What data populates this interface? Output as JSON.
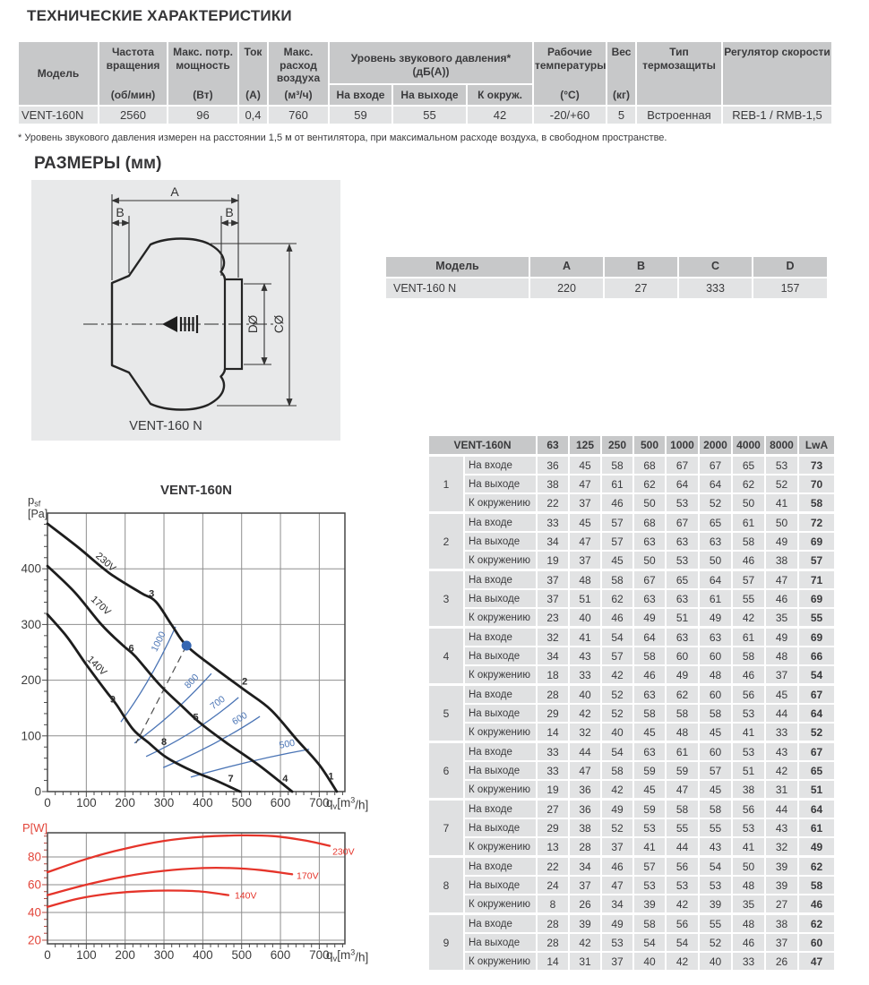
{
  "heading": "ТЕХНИЧЕСКИЕ ХАРАКТЕРИСТИКИ",
  "specs": {
    "model_header": "Модель",
    "columns": [
      {
        "title": "Частота вращения",
        "unit": "(об/мин)"
      },
      {
        "title": "Макс. потр. мощность",
        "unit": "(Вт)"
      },
      {
        "title": "Ток",
        "unit": "(А)"
      },
      {
        "title": "Макс. расход воздуха",
        "unit": "(м³/ч)"
      }
    ],
    "sound_group": {
      "title": "Уровень звукового давления*",
      "subtitle": "(дБ(А))",
      "subcolumns": [
        "На входе",
        "На выходе",
        "К окруж."
      ]
    },
    "columns_right": [
      {
        "title": "Рабочие температуры",
        "unit": "(°С)"
      },
      {
        "title": "Вес",
        "unit": "(кг)"
      },
      {
        "title": "Тип термозащиты",
        "unit": ""
      },
      {
        "title": "Регулятор скорости",
        "unit": ""
      }
    ],
    "row": {
      "model": "VENT-160N",
      "rpm": "2560",
      "power": "96",
      "current": "0,4",
      "airflow": "760",
      "sound_inlet": "59",
      "sound_outlet": "55",
      "sound_ambient": "42",
      "temp": "-20/+60",
      "weight": "5",
      "thermal": "Встроенная",
      "regulator": "REB-1 / RMB-1,5"
    },
    "footnote": "* Уровень звукового давления измерен на расстоянии 1,5 м от вентилятора, при максимальном расходе воздуха, в свободном пространстве."
  },
  "dimensions": {
    "heading": "РАЗМЕРЫ (мм)",
    "diagram": {
      "label_a": "A",
      "label_b_left": "B",
      "label_b_right": "B",
      "label_d": "DØ",
      "label_c": "CØ",
      "caption": "VENT-160 N"
    },
    "table": {
      "headers": [
        "Модель",
        "A",
        "B",
        "C",
        "D"
      ],
      "row": [
        "VENT-160 N",
        "220",
        "27",
        "333",
        "157"
      ]
    }
  },
  "acoustic": {
    "model": "VENT-160N",
    "freq_headers": [
      "63",
      "125",
      "250",
      "500",
      "1000",
      "2000",
      "4000",
      "8000",
      "LwA"
    ],
    "row_labels": [
      "На входе",
      "На выходе",
      "К окружению"
    ],
    "groups": [
      {
        "n": "1",
        "rows": [
          [
            36,
            45,
            58,
            68,
            67,
            67,
            65,
            53,
            73
          ],
          [
            38,
            47,
            61,
            62,
            64,
            64,
            62,
            52,
            70
          ],
          [
            22,
            37,
            46,
            50,
            53,
            52,
            50,
            41,
            58
          ]
        ]
      },
      {
        "n": "2",
        "rows": [
          [
            33,
            45,
            57,
            68,
            67,
            65,
            61,
            50,
            72
          ],
          [
            34,
            47,
            57,
            63,
            63,
            63,
            58,
            49,
            69
          ],
          [
            19,
            37,
            45,
            50,
            53,
            50,
            46,
            38,
            57
          ]
        ]
      },
      {
        "n": "3",
        "rows": [
          [
            37,
            48,
            58,
            67,
            65,
            64,
            57,
            47,
            71
          ],
          [
            37,
            51,
            62,
            63,
            63,
            61,
            55,
            46,
            69
          ],
          [
            23,
            40,
            46,
            49,
            51,
            49,
            42,
            35,
            55
          ]
        ]
      },
      {
        "n": "4",
        "rows": [
          [
            32,
            41,
            54,
            64,
            63,
            63,
            61,
            49,
            69
          ],
          [
            34,
            43,
            57,
            58,
            60,
            60,
            58,
            48,
            66
          ],
          [
            18,
            33,
            42,
            46,
            49,
            48,
            46,
            37,
            54
          ]
        ]
      },
      {
        "n": "5",
        "rows": [
          [
            28,
            40,
            52,
            63,
            62,
            60,
            56,
            45,
            67
          ],
          [
            29,
            42,
            52,
            58,
            58,
            58,
            53,
            44,
            64
          ],
          [
            14,
            32,
            40,
            45,
            48,
            45,
            41,
            33,
            52
          ]
        ]
      },
      {
        "n": "6",
        "rows": [
          [
            33,
            44,
            54,
            63,
            61,
            60,
            53,
            43,
            67
          ],
          [
            33,
            47,
            58,
            59,
            59,
            57,
            51,
            42,
            65
          ],
          [
            19,
            36,
            42,
            45,
            47,
            45,
            38,
            31,
            51
          ]
        ]
      },
      {
        "n": "7",
        "rows": [
          [
            27,
            36,
            49,
            59,
            58,
            58,
            56,
            44,
            64
          ],
          [
            29,
            38,
            52,
            53,
            55,
            55,
            53,
            43,
            61
          ],
          [
            13,
            28,
            37,
            41,
            44,
            43,
            41,
            32,
            49
          ]
        ]
      },
      {
        "n": "8",
        "rows": [
          [
            22,
            34,
            46,
            57,
            56,
            54,
            50,
            39,
            62
          ],
          [
            24,
            37,
            47,
            53,
            53,
            53,
            48,
            39,
            58
          ],
          [
            8,
            26,
            34,
            39,
            42,
            39,
            35,
            27,
            46
          ]
        ]
      },
      {
        "n": "9",
        "rows": [
          [
            28,
            39,
            49,
            58,
            56,
            55,
            48,
            38,
            62
          ],
          [
            28,
            42,
            53,
            54,
            54,
            52,
            46,
            37,
            60
          ],
          [
            14,
            31,
            37,
            40,
            42,
            40,
            33,
            26,
            47
          ]
        ]
      }
    ]
  },
  "chart_data": [
    {
      "type": "line",
      "title": "VENT-160N",
      "xlabel": "qv[m³/h]",
      "ylabel": "psf [Pa]",
      "x_label_parts": {
        "base": "q",
        "sub": "v",
        "unit_pre": "[m",
        "sup": "3",
        "unit_post": "/h]"
      },
      "y_label_parts": {
        "base": "p",
        "sub": "sf",
        "unit": "[Pa]"
      },
      "xlim": [
        0,
        766
      ],
      "ylim": [
        0,
        500
      ],
      "xticks": [
        0,
        100,
        200,
        300,
        400,
        500,
        600,
        700
      ],
      "yticks": [
        0,
        100,
        200,
        300,
        400
      ],
      "grid": true,
      "series": [
        {
          "name": "230V",
          "color": "#1d1d1d",
          "label_at": [
            145,
            408
          ],
          "label_rot": 42,
          "points": [
            [
              0,
              481
            ],
            [
              80,
              438
            ],
            [
              160,
              392
            ],
            [
              240,
              357
            ],
            [
              279,
              341
            ],
            [
              320,
              299
            ],
            [
              358,
              262
            ],
            [
              430,
              222
            ],
            [
              508,
              182
            ],
            [
              575,
              147
            ],
            [
              640,
              95
            ],
            [
              700,
              48
            ],
            [
              745,
              0
            ]
          ]
        },
        {
          "name": "170V",
          "color": "#1d1d1d",
          "label_at": [
            132,
            330
          ],
          "label_rot": 43,
          "points": [
            [
              0,
              405
            ],
            [
              70,
              358
            ],
            [
              140,
              299
            ],
            [
              195,
              262
            ],
            [
              226,
              243
            ],
            [
              290,
              191
            ],
            [
              350,
              151
            ],
            [
              395,
              122
            ],
            [
              460,
              88
            ],
            [
              545,
              47
            ],
            [
              630,
              0
            ]
          ]
        },
        {
          "name": "140V",
          "color": "#1d1d1d",
          "label_at": [
            122,
            222
          ],
          "label_rot": 45,
          "points": [
            [
              0,
              318
            ],
            [
              50,
              278
            ],
            [
              100,
              228
            ],
            [
              150,
              181
            ],
            [
              178,
              156
            ],
            [
              220,
              112
            ],
            [
              260,
              88
            ],
            [
              305,
              62
            ],
            [
              370,
              38
            ],
            [
              430,
              21
            ],
            [
              496,
              0
            ]
          ]
        }
      ],
      "system_curves": [
        {
          "label": "1000",
          "start": [
            189,
            125
          ],
          "ctrl": [
            268,
            200
          ],
          "end": [
            330,
            296
          ]
        },
        {
          "label": "800",
          "start": [
            224,
            87
          ],
          "ctrl": [
            330,
            140
          ],
          "end": [
            422,
            212
          ]
        },
        {
          "label": "700",
          "start": [
            254,
            63
          ],
          "ctrl": [
            385,
            105
          ],
          "end": [
            492,
            169
          ]
        },
        {
          "label": "600",
          "start": [
            298,
            43
          ],
          "ctrl": [
            440,
            85
          ],
          "end": [
            547,
            135
          ]
        },
        {
          "label": "500",
          "start": [
            369,
            26
          ],
          "ctrl": [
            530,
            58
          ],
          "end": [
            674,
            76
          ]
        }
      ],
      "operating_point": {
        "x": 358,
        "y": 262,
        "color": "#3566b2"
      },
      "dashed_line": [
        [
          358,
          262
        ],
        [
          228,
          87
        ]
      ],
      "point_labels": [
        {
          "n": "1",
          "x": 730,
          "y": 22
        },
        {
          "n": "2",
          "x": 508,
          "y": 192
        },
        {
          "n": "3",
          "x": 268,
          "y": 350
        },
        {
          "n": "4",
          "x": 612,
          "y": 18
        },
        {
          "n": "5",
          "x": 382,
          "y": 128
        },
        {
          "n": "6",
          "x": 216,
          "y": 252
        },
        {
          "n": "7",
          "x": 472,
          "y": 18
        },
        {
          "n": "8",
          "x": 300,
          "y": 84
        },
        {
          "n": "9",
          "x": 168,
          "y": 160
        }
      ],
      "accent_color": "#4a74b5"
    },
    {
      "type": "line",
      "title": "",
      "xlabel": "qv[m³/h]",
      "ylabel": "P[W]",
      "xlim": [
        0,
        766
      ],
      "ylim": [
        17.4,
        97.4
      ],
      "xticks": [
        0,
        100,
        200,
        300,
        400,
        500,
        600,
        700
      ],
      "yticks": [
        20,
        40,
        60,
        80
      ],
      "grid": true,
      "series": [
        {
          "name": "230V",
          "color": "#e5342a",
          "points": [
            [
              0,
              69
            ],
            [
              100,
              78.5
            ],
            [
              200,
              86
            ],
            [
              300,
              91.5
            ],
            [
              400,
              94.5
            ],
            [
              500,
              95.5
            ],
            [
              580,
              95
            ],
            [
              660,
              92
            ],
            [
              727,
              88
            ]
          ]
        },
        {
          "name": "170V",
          "color": "#e5342a",
          "points": [
            [
              0,
              52.5
            ],
            [
              100,
              60
            ],
            [
              200,
              66
            ],
            [
              300,
              70
            ],
            [
              400,
              72
            ],
            [
              470,
              72
            ],
            [
              550,
              70.5
            ],
            [
              630,
              67.5
            ]
          ]
        },
        {
          "name": "140V",
          "color": "#e5342a",
          "points": [
            [
              0,
              44
            ],
            [
              80,
              50
            ],
            [
              160,
              53.5
            ],
            [
              240,
              55.3
            ],
            [
              310,
              55.8
            ],
            [
              390,
              55.2
            ],
            [
              466,
              52.5
            ]
          ]
        }
      ],
      "axis_color": "#e2453a"
    }
  ]
}
